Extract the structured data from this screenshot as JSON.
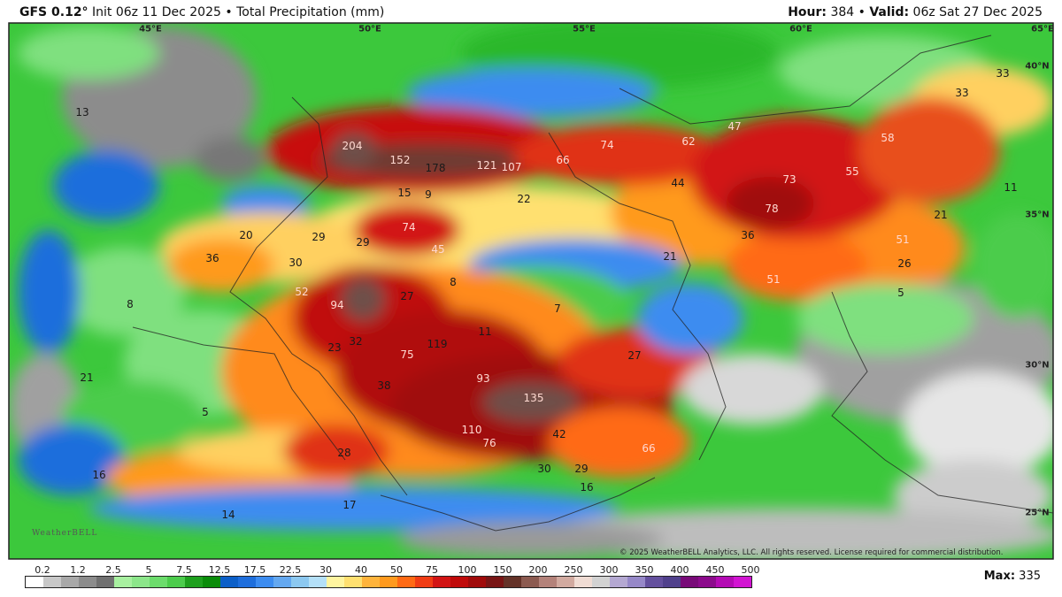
{
  "header": {
    "model": "GFS 0.12°",
    "init": "Init 06z 11 Dec 2025",
    "field": "Total Precipitation (mm)",
    "hour_label": "Hour:",
    "hour": "384",
    "valid_label": "Valid:",
    "valid": "06z Sat 27 Dec 2025"
  },
  "map": {
    "grid_labels": [
      "45°E",
      "50°E",
      "55°E",
      "60°E",
      "65°E",
      "40°N",
      "35°N",
      "30°N",
      "25°N"
    ],
    "value_labels": [
      "204",
      "152",
      "178",
      "121",
      "107",
      "66",
      "74",
      "62",
      "47",
      "58",
      "55",
      "73",
      "78",
      "44",
      "22",
      "74",
      "45",
      "29",
      "29",
      "30",
      "20",
      "36",
      "9",
      "15",
      "52",
      "94",
      "27",
      "119",
      "75",
      "32",
      "23",
      "93",
      "135",
      "110",
      "76",
      "42",
      "66",
      "27",
      "36",
      "51",
      "26",
      "21",
      "51",
      "21",
      "11",
      "33",
      "33",
      "5",
      "8",
      "7",
      "11",
      "21",
      "5",
      "16",
      "14",
      "17",
      "28",
      "16",
      "29",
      "30",
      "38",
      "8",
      "13"
    ],
    "copyright": "© 2025 WeatherBELL Analytics, LLC. All rights reserved. License required for commercial distribution.",
    "logo": "WeatherBELL"
  },
  "colorbar": {
    "labels": [
      "0.2",
      "1.2",
      "2.5",
      "5",
      "7.5",
      "12.5",
      "17.5",
      "22.5",
      "30",
      "40",
      "50",
      "75",
      "100",
      "150",
      "200",
      "250",
      "300",
      "350",
      "400",
      "450",
      "500"
    ],
    "colors": [
      "#ffffff",
      "#c8c8c8",
      "#a8a8a8",
      "#8c8c8c",
      "#707070",
      "#a8f0a0",
      "#8ce68a",
      "#6cdc6c",
      "#4ccc4c",
      "#1ea01e",
      "#0a8c0a",
      "#0c5fc8",
      "#1e6edc",
      "#3c8cf0",
      "#64a8f0",
      "#8cc8f0",
      "#b4e0f8",
      "#fff5a0",
      "#ffe070",
      "#ffb43c",
      "#ff9a1e",
      "#ff6a14",
      "#f03c14",
      "#d21414",
      "#c00a0a",
      "#a00a0a",
      "#781414",
      "#643228",
      "#8c5a50",
      "#b4827a",
      "#d2aaa0",
      "#f0dcd4",
      "#d2d2d2",
      "#b4a8d2",
      "#9688c8",
      "#64509e",
      "#50408c",
      "#780a78",
      "#8c0a8c",
      "#b40ab4",
      "#d214d2"
    ]
  },
  "max": {
    "label": "Max:",
    "value": "335"
  }
}
